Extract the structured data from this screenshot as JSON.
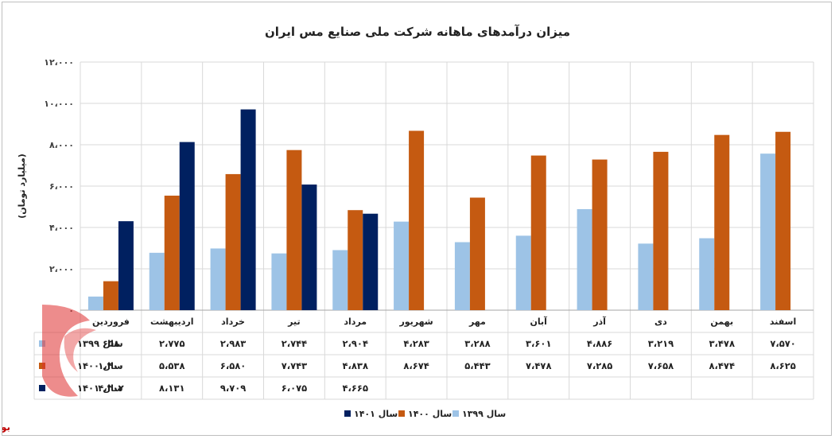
{
  "chart_data": {
    "type": "bar",
    "title": "میزان درآمدهای ماهانه شرکت ملی صنایع مس ایران",
    "ylabel": "(میلیارد تومان)",
    "ylim": [
      0,
      12000
    ],
    "ytick_labels": [
      "۰",
      "۲،۰۰۰",
      "۴،۰۰۰",
      "۶،۰۰۰",
      "۸،۰۰۰",
      "۱۰،۰۰۰",
      "۱۲،۰۰۰"
    ],
    "yticks": [
      0,
      2000,
      4000,
      6000,
      8000,
      10000,
      12000
    ],
    "grid": true,
    "legend_position": "bottom",
    "categories": [
      "فروردین",
      "اردیبهشت",
      "خرداد",
      "تیر",
      "مرداد",
      "شهریور",
      "مهر",
      "آبان",
      "آذر",
      "دی",
      "بهمن",
      "اسفند"
    ],
    "series": [
      {
        "name": "سال ۱۳۹۹",
        "color": "#9dc3e6",
        "values": [
          658,
          2775,
          2983,
          2744,
          2904,
          4283,
          3288,
          3601,
          4886,
          3219,
          3478,
          7570
        ],
        "labels": [
          "۶۵۸",
          "۲،۷۷۵",
          "۲،۹۸۳",
          "۲،۷۴۴",
          "۲،۹۰۴",
          "۴،۲۸۳",
          "۳،۲۸۸",
          "۳،۶۰۱",
          "۴،۸۸۶",
          "۳،۲۱۹",
          "۳،۴۷۸",
          "۷،۵۷۰"
        ]
      },
      {
        "name": "سال ۱۴۰۰",
        "color": "#c55a11",
        "values": [
          1400,
          5538,
          6580,
          7743,
          4838,
          8674,
          5443,
          7478,
          7285,
          7658,
          8474,
          8625
        ],
        "labels": [
          "۱،۴۰۰",
          "۵،۵۳۸",
          "۶،۵۸۰",
          "۷،۷۴۳",
          "۴،۸۳۸",
          "۸،۶۷۴",
          "۵،۴۴۳",
          "۷،۴۷۸",
          "۷،۲۸۵",
          "۷،۶۵۸",
          "۸،۴۷۴",
          "۸،۶۲۵"
        ]
      },
      {
        "name": "سال ۱۴۰۱",
        "color": "#002060",
        "values": [
          4302,
          8131,
          9709,
          6075,
          4665,
          null,
          null,
          null,
          null,
          null,
          null,
          null
        ],
        "labels": [
          "۴،۳۰۲",
          "۸،۱۳۱",
          "۹،۷۰۹",
          "۶،۰۷۵",
          "۴،۶۶۵",
          "",
          "",
          "",
          "",
          "",
          "",
          ""
        ]
      }
    ]
  },
  "source_brand": "بورس نیوز"
}
